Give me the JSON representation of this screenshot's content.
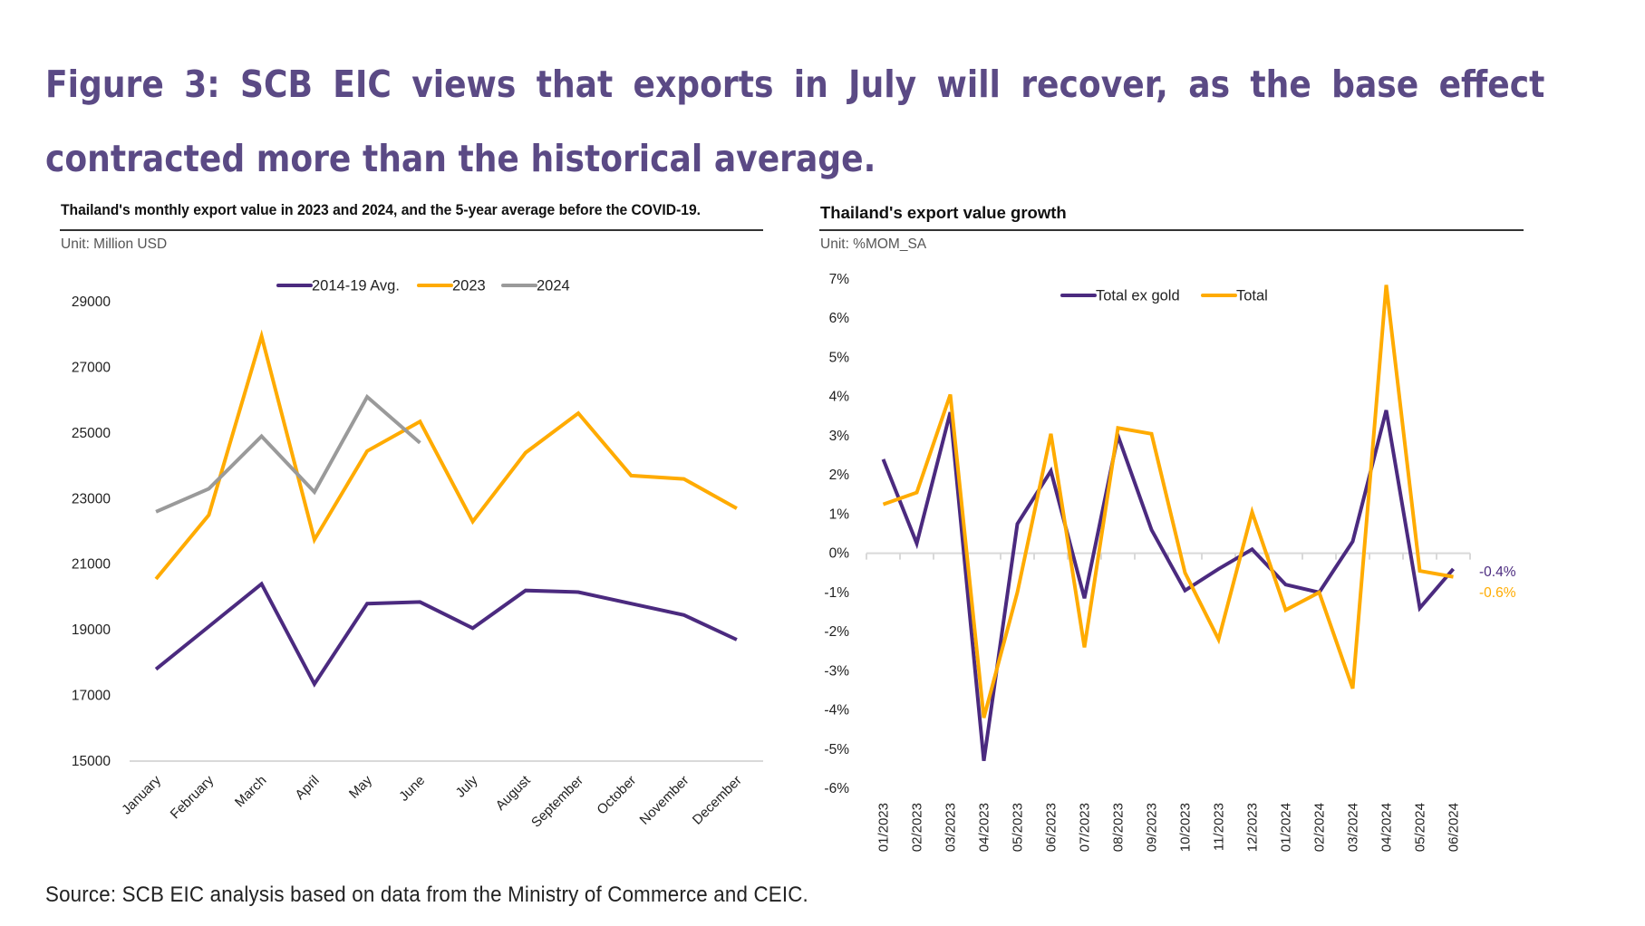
{
  "figure": {
    "title": "Figure 3:  SCB EIC views that exports in July will recover, as the base effect contracted more than the historical average.",
    "source": "Source: SCB EIC analysis based on data from the Ministry of Commerce and CEIC."
  },
  "colors": {
    "title": "#5b4a85",
    "purple": "#4b2a7f",
    "orange": "#ffab00",
    "gray": "#9a9a9a",
    "axis": "#d9d9d9"
  },
  "chart_data": [
    {
      "type": "line",
      "title": "Thailand's monthly export value in 2023 and 2024, and the 5-year average before the COVID-19.",
      "unit": "Unit: Million USD",
      "xlabel": "",
      "ylabel": "",
      "ylim": [
        15000,
        29000
      ],
      "yticks": [
        15000,
        17000,
        19000,
        21000,
        23000,
        25000,
        27000,
        29000
      ],
      "grid": false,
      "legend": "top-center",
      "categories": [
        "January",
        "February",
        "March",
        "April",
        "May",
        "June",
        "July",
        "August",
        "September",
        "October",
        "November",
        "December"
      ],
      "series": [
        {
          "name": "2014-19 Avg.",
          "color": "#4b2a7f",
          "values": [
            17800,
            19100,
            20400,
            17350,
            19800,
            19850,
            19050,
            20200,
            20150,
            19800,
            19450,
            18700
          ]
        },
        {
          "name": "2023",
          "color": "#ffab00",
          "values": [
            20550,
            22500,
            27950,
            21750,
            24450,
            25350,
            22300,
            24400,
            25600,
            23700,
            23600,
            22700
          ]
        },
        {
          "name": "2024",
          "color": "#9a9a9a",
          "values": [
            22600,
            23300,
            24900,
            23200,
            26100,
            24700,
            null,
            null,
            null,
            null,
            null,
            null
          ]
        }
      ]
    },
    {
      "type": "line",
      "title": "Thailand's export value growth",
      "unit": "Unit: %MOM_SA",
      "xlabel": "",
      "ylabel": "",
      "ylim": [
        -6,
        7
      ],
      "yticks": [
        -6,
        -5,
        -4,
        -3,
        -2,
        -1,
        0,
        1,
        2,
        3,
        4,
        5,
        6,
        7
      ],
      "ytick_suffix": "%",
      "grid": false,
      "legend": "top-center",
      "categories": [
        "01/2023",
        "02/2023",
        "03/2023",
        "04/2023",
        "05/2023",
        "06/2023",
        "07/2023",
        "08/2023",
        "09/2023",
        "10/2023",
        "11/2023",
        "12/2023",
        "01/2024",
        "02/2024",
        "03/2024",
        "04/2024",
        "05/2024",
        "06/2024"
      ],
      "series": [
        {
          "name": "Total ex gold",
          "color": "#4b2a7f",
          "values": [
            2.4,
            0.25,
            3.6,
            -5.3,
            0.75,
            2.1,
            -1.15,
            3.0,
            0.6,
            -0.95,
            -0.4,
            0.1,
            -0.8,
            -1.0,
            0.3,
            3.65,
            -1.4,
            -0.4
          ]
        },
        {
          "name": "Total",
          "color": "#ffab00",
          "values": [
            1.25,
            1.55,
            4.05,
            -4.2,
            -1.0,
            3.05,
            -2.4,
            3.2,
            3.05,
            -0.5,
            -2.2,
            1.05,
            -1.45,
            -1.0,
            -3.45,
            6.85,
            -0.45,
            -0.6
          ]
        }
      ],
      "annotations": [
        {
          "text": "-0.4%",
          "series": "Total ex gold",
          "color": "#4b2a7f"
        },
        {
          "text": "-0.6%",
          "series": "Total",
          "color": "#ffab00"
        }
      ]
    }
  ]
}
